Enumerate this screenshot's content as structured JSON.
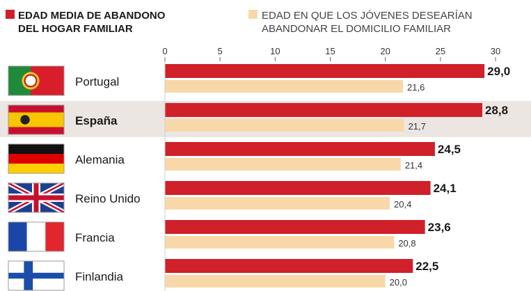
{
  "legend": {
    "primary_label_line1": "EDAD MEDIA DE ABANDONO",
    "primary_label_line2": "DEL HOGAR FAMILIAR",
    "secondary_label_line1": "EDAD EN QUE LOS JÓVENES DESEARÍAN",
    "secondary_label_line2": "ABANDONAR EL DOMICILIO FAMILIAR"
  },
  "chart_data": {
    "type": "bar",
    "orientation": "horizontal",
    "categories": [
      "Portugal",
      "España",
      "Alemania",
      "Reino Unido",
      "Francia",
      "Finlandia"
    ],
    "highlight_category": "España",
    "series": [
      {
        "name": "EDAD MEDIA DE ABANDONO DEL HOGAR FAMILIAR",
        "values": [
          29.0,
          28.8,
          24.5,
          24.1,
          23.6,
          22.5
        ],
        "labels": [
          "29,0",
          "28,8",
          "24,5",
          "24,1",
          "23,6",
          "22,5"
        ],
        "color": "#d0202a"
      },
      {
        "name": "EDAD EN QUE LOS JÓVENES DESEARÍAN ABANDONAR EL DOMICILIO FAMILIAR",
        "values": [
          21.6,
          21.7,
          21.4,
          20.4,
          20.8,
          20.0
        ],
        "labels": [
          "21,6",
          "21,7",
          "21,4",
          "20,4",
          "20,8",
          "20,0"
        ],
        "color": "#f8d8a8"
      }
    ],
    "xlim": [
      0,
      30
    ],
    "xticks": [
      "0",
      "5",
      "10",
      "15",
      "20",
      "25",
      "30"
    ],
    "xaxis_position": "top",
    "legend_position": "top",
    "flags": [
      "portugal-flag",
      "spain-flag",
      "germany-flag",
      "uk-flag",
      "france-flag",
      "finland-flag"
    ]
  }
}
